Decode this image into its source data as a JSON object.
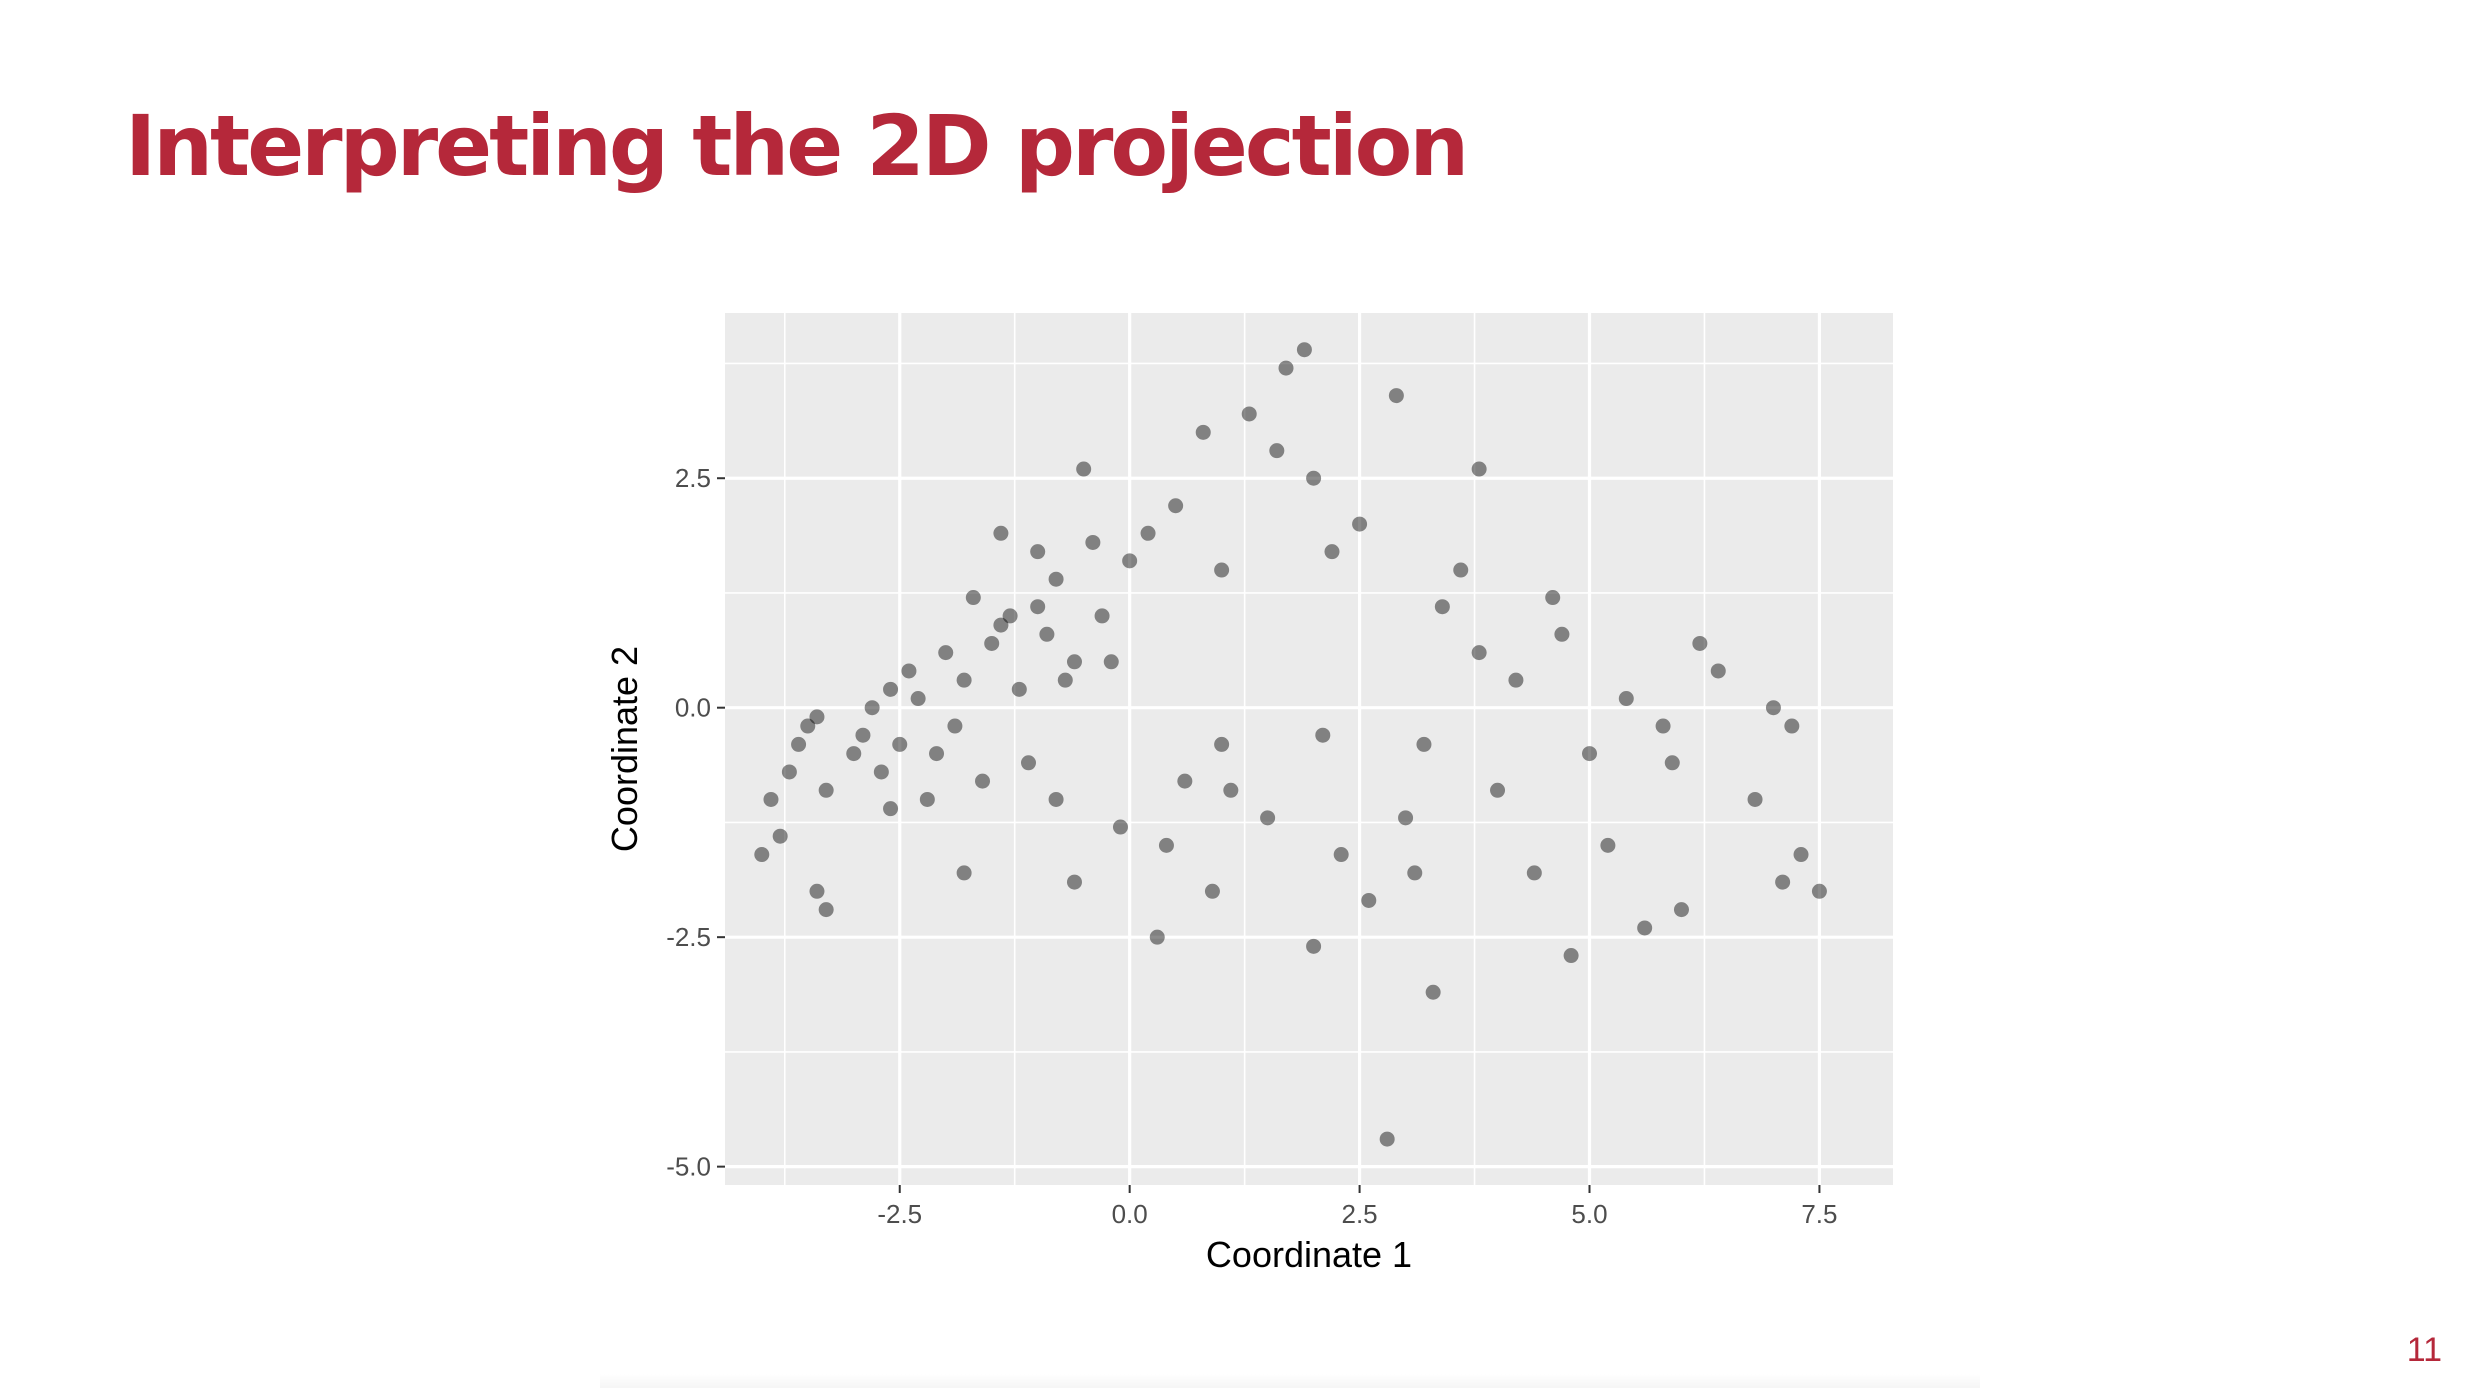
{
  "slide": {
    "title": "Interpreting the 2D projection",
    "page_number": "11",
    "accent_color": "#b5283a"
  },
  "chart_data": {
    "type": "scatter",
    "title": "",
    "xlabel": "Coordinate 1",
    "ylabel": "Coordinate 2",
    "xlim": [
      -4.4,
      8.3
    ],
    "ylim": [
      -5.2,
      4.3
    ],
    "x_ticks": [
      -2.5,
      0.0,
      2.5,
      5.0,
      7.5
    ],
    "x_tick_labels": [
      "-2.5",
      "0.0",
      "2.5",
      "5.0",
      "7.5"
    ],
    "y_ticks": [
      -5.0,
      -2.5,
      0.0,
      2.5
    ],
    "y_tick_labels": [
      "-5.0",
      "-2.5",
      "0.0",
      "2.5"
    ],
    "grid": true,
    "legend": "none",
    "panel_color": "#ebebeb",
    "point_color": "#000000",
    "point_alpha": 0.45,
    "points": [
      [
        -4.0,
        -1.6
      ],
      [
        -3.3,
        -2.2
      ],
      [
        -3.4,
        -2.0
      ],
      [
        -3.8,
        -1.4
      ],
      [
        -3.9,
        -1.0
      ],
      [
        -3.7,
        -0.7
      ],
      [
        -3.6,
        -0.4
      ],
      [
        -3.5,
        -0.2
      ],
      [
        -3.4,
        -0.1
      ],
      [
        -3.3,
        -0.9
      ],
      [
        -3.0,
        -0.5
      ],
      [
        -2.9,
        -0.3
      ],
      [
        -2.8,
        0.0
      ],
      [
        -2.7,
        -0.7
      ],
      [
        -2.6,
        0.2
      ],
      [
        -2.5,
        -0.4
      ],
      [
        -2.4,
        0.4
      ],
      [
        -2.3,
        0.1
      ],
      [
        -2.2,
        -1.0
      ],
      [
        -2.1,
        -0.5
      ],
      [
        -2.0,
        0.6
      ],
      [
        -1.9,
        -0.2
      ],
      [
        -1.8,
        0.3
      ],
      [
        -1.8,
        -1.8
      ],
      [
        -1.7,
        1.2
      ],
      [
        -1.6,
        -0.8
      ],
      [
        -1.5,
        0.7
      ],
      [
        -1.4,
        0.9
      ],
      [
        -1.3,
        1.0
      ],
      [
        -1.2,
        0.2
      ],
      [
        -1.1,
        -0.6
      ],
      [
        -1.0,
        1.1
      ],
      [
        -0.9,
        0.8
      ],
      [
        -0.8,
        1.4
      ],
      [
        -0.7,
        0.3
      ],
      [
        -0.6,
        0.5
      ],
      [
        -0.5,
        2.6
      ],
      [
        -0.4,
        1.8
      ],
      [
        -0.3,
        1.0
      ],
      [
        -0.2,
        0.5
      ],
      [
        -0.1,
        -1.3
      ],
      [
        0.0,
        1.6
      ],
      [
        0.2,
        1.9
      ],
      [
        0.4,
        -1.5
      ],
      [
        0.5,
        2.2
      ],
      [
        0.6,
        -0.8
      ],
      [
        0.8,
        3.0
      ],
      [
        1.0,
        1.5
      ],
      [
        1.1,
        -0.9
      ],
      [
        1.3,
        3.2
      ],
      [
        1.5,
        -1.2
      ],
      [
        1.7,
        3.7
      ],
      [
        1.9,
        3.9
      ],
      [
        2.0,
        2.5
      ],
      [
        2.1,
        -0.3
      ],
      [
        2.3,
        -1.6
      ],
      [
        2.5,
        2.0
      ],
      [
        2.6,
        -2.1
      ],
      [
        2.8,
        -4.7
      ],
      [
        2.9,
        3.4
      ],
      [
        3.1,
        -1.8
      ],
      [
        3.2,
        -0.4
      ],
      [
        3.3,
        -3.1
      ],
      [
        3.4,
        1.1
      ],
      [
        3.6,
        1.5
      ],
      [
        3.8,
        2.6
      ],
      [
        3.8,
        0.6
      ],
      [
        4.0,
        -0.9
      ],
      [
        4.2,
        0.3
      ],
      [
        4.4,
        -1.8
      ],
      [
        4.6,
        1.2
      ],
      [
        4.8,
        -2.7
      ],
      [
        5.0,
        -0.5
      ],
      [
        5.2,
        -1.5
      ],
      [
        5.4,
        0.1
      ],
      [
        5.6,
        -2.4
      ],
      [
        5.8,
        -0.2
      ],
      [
        6.0,
        -2.2
      ],
      [
        6.2,
        0.7
      ],
      [
        6.4,
        0.4
      ],
      [
        6.8,
        -1.0
      ],
      [
        7.0,
        0.0
      ],
      [
        7.1,
        -1.9
      ],
      [
        7.2,
        -0.2
      ],
      [
        7.3,
        -1.6
      ],
      [
        7.5,
        -2.0
      ],
      [
        1.6,
        2.8
      ],
      [
        0.3,
        -2.5
      ],
      [
        -0.6,
        -1.9
      ],
      [
        2.2,
        1.7
      ],
      [
        -1.4,
        1.9
      ],
      [
        -0.8,
        -1.0
      ],
      [
        1.0,
        -0.4
      ],
      [
        3.0,
        -1.2
      ],
      [
        4.7,
        0.8
      ],
      [
        5.9,
        -0.6
      ],
      [
        -2.6,
        -1.1
      ],
      [
        0.9,
        -2.0
      ],
      [
        2.0,
        -2.6
      ],
      [
        -1.0,
        1.7
      ]
    ]
  }
}
